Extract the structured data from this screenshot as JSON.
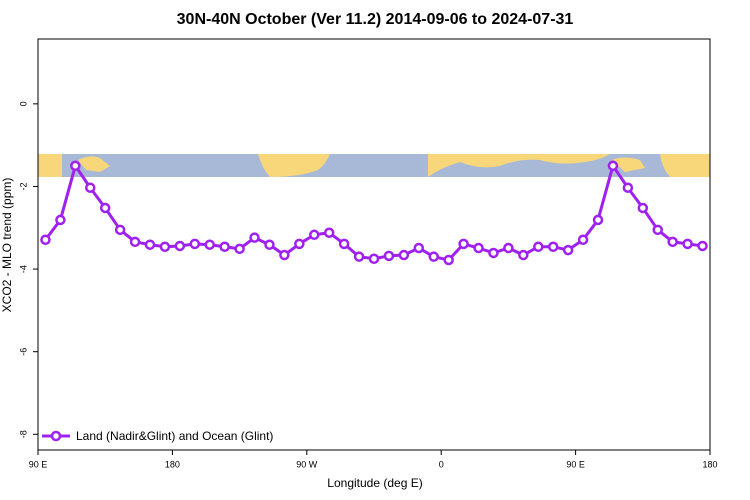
{
  "chart_data": {
    "type": "line",
    "title": "30N-40N October (Ver 11.2)   2014-09-06 to 2024-07-31",
    "x_label": "Longitude (deg E)",
    "y_label": "XCO2 - MLO trend (ppm)",
    "x": [
      95,
      105,
      115,
      125,
      135,
      145,
      155,
      165,
      175,
      185,
      195,
      205,
      215,
      225,
      235,
      245,
      255,
      265,
      275,
      285,
      295,
      305,
      315,
      325,
      335,
      345,
      355,
      365,
      375,
      385,
      395,
      405,
      415,
      425,
      435,
      445,
      455,
      465,
      475,
      485,
      495,
      505,
      515,
      525,
      535
    ],
    "series": [
      {
        "name": "Land (Nadir&Glint) and Ocean (Glint)",
        "color": "#a020f0",
        "values": [
          -3.29,
          -2.81,
          -1.5,
          -2.03,
          -2.52,
          -3.05,
          -3.34,
          -3.41,
          -3.46,
          -3.44,
          -3.39,
          -3.41,
          -3.46,
          -3.51,
          -3.24,
          -3.41,
          -3.66,
          -3.39,
          -3.17,
          -3.12,
          -3.39,
          -3.7,
          -3.75,
          -3.68,
          -3.66,
          -3.49,
          -3.7,
          -3.78,
          -3.39,
          -3.49,
          -3.61,
          -3.49,
          -3.66,
          -3.46,
          -3.46,
          -3.54,
          -3.29,
          -2.81,
          -1.5,
          -2.03,
          -2.52,
          -3.05,
          -3.34,
          -3.39,
          -3.44
        ]
      }
    ],
    "xlim": [
      90,
      540
    ],
    "xticks": [
      {
        "value": 90,
        "label": "90 E"
      },
      {
        "value": 180,
        "label": "180"
      },
      {
        "value": 270,
        "label": "90 W"
      },
      {
        "value": 360,
        "label": "0"
      },
      {
        "value": 450,
        "label": "90 E"
      },
      {
        "value": 540,
        "label": "180"
      }
    ],
    "ylim": [
      -8.38,
      1.57
    ],
    "yticks": [
      0,
      -2,
      -4,
      -6,
      -8
    ],
    "legend": "bottom-left"
  }
}
